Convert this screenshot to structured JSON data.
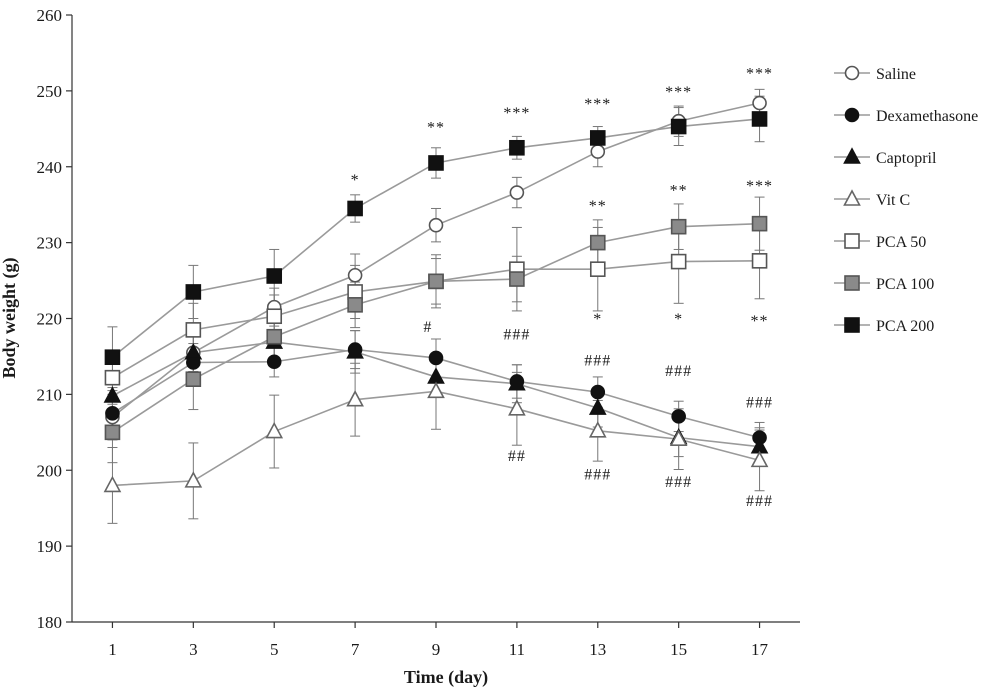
{
  "chart_data": {
    "type": "line",
    "xlabel": "Time (day)",
    "ylabel": "Body weight (g)",
    "x": [
      1,
      3,
      5,
      7,
      9,
      11,
      13,
      15,
      17
    ],
    "xlim": [
      0,
      18
    ],
    "ylim": [
      180,
      260
    ],
    "yticks": [
      180,
      190,
      200,
      210,
      220,
      230,
      240,
      250,
      260
    ],
    "grid": false,
    "legend_position": "right",
    "series": [
      {
        "name": "Saline",
        "marker": "circle-open",
        "values": [
          207,
          215.5,
          221.5,
          225.7,
          232.3,
          236.6,
          242,
          246,
          248.4
        ],
        "errors": [
          3,
          2.5,
          2.5,
          2.8,
          2.2,
          2,
          2,
          2,
          1.8
        ]
      },
      {
        "name": "Dexamethasone",
        "marker": "circle-filled",
        "values": [
          207.5,
          214.2,
          214.3,
          215.9,
          214.8,
          211.7,
          210.3,
          207.1,
          204.3
        ],
        "errors": [
          3,
          2.5,
          2,
          2.5,
          2.5,
          2.2,
          2,
          2,
          2
        ]
      },
      {
        "name": "Captopril",
        "marker": "triangle-filled",
        "values": [
          209.8,
          215.5,
          216.9,
          215.6,
          212.3,
          211.4,
          208.2,
          204.3,
          203.1
        ],
        "errors": [
          3,
          2.5,
          2.5,
          2.8,
          2.5,
          2.5,
          2.5,
          2.5,
          2.5
        ]
      },
      {
        "name": "Vit C",
        "marker": "triangle-open",
        "values": [
          198,
          198.6,
          205.1,
          209.3,
          210.4,
          208.1,
          205.2,
          204.1,
          201.3
        ],
        "errors": [
          5,
          5,
          4.8,
          4.8,
          5,
          4.8,
          4,
          4,
          4
        ]
      },
      {
        "name": "PCA 50",
        "marker": "square-open",
        "values": [
          212.2,
          218.5,
          220.3,
          223.5,
          224.9,
          226.5,
          226.5,
          227.5,
          227.6
        ],
        "errors": [
          3.5,
          3.5,
          2.8,
          3.5,
          3.5,
          5.5,
          5.5,
          5.5,
          5
        ]
      },
      {
        "name": "PCA 100",
        "marker": "square-gray",
        "values": [
          205,
          212,
          217.6,
          221.8,
          224.9,
          225.2,
          230,
          232.1,
          232.5
        ],
        "errors": [
          4,
          4,
          3,
          3,
          3,
          3,
          3,
          3,
          3.5
        ]
      },
      {
        "name": "PCA 200",
        "marker": "square-filled",
        "values": [
          214.9,
          223.5,
          225.6,
          234.5,
          240.5,
          242.5,
          243.8,
          245.3,
          246.3
        ],
        "errors": [
          4,
          3.5,
          3.5,
          1.8,
          2,
          1.5,
          1.5,
          2.5,
          3
        ]
      }
    ],
    "annotations": [
      {
        "text": "*",
        "x": 7,
        "y": 237.6
      },
      {
        "text": "**",
        "x": 9,
        "y": 244.5
      },
      {
        "text": "***",
        "x": 11,
        "y": 246.4
      },
      {
        "text": "***",
        "x": 13,
        "y": 247.6
      },
      {
        "text": "***",
        "x": 15,
        "y": 249.2
      },
      {
        "text": "***",
        "x": 17,
        "y": 251.6
      },
      {
        "text": "**",
        "x": 13,
        "y": 234.2
      },
      {
        "text": "**",
        "x": 15,
        "y": 236.2
      },
      {
        "text": "***",
        "x": 17,
        "y": 236.8
      },
      {
        "text": "*",
        "x": 13,
        "y": 219.3
      },
      {
        "text": "*",
        "x": 15,
        "y": 219.3
      },
      {
        "text": "**",
        "x": 17,
        "y": 219.0
      },
      {
        "text": "#",
        "x": 8.8,
        "y": 218.2
      },
      {
        "text": "###",
        "x": 11,
        "y": 217.2
      },
      {
        "text": "###",
        "x": 13,
        "y": 213.8
      },
      {
        "text": "###",
        "x": 15,
        "y": 212.4
      },
      {
        "text": "###",
        "x": 17,
        "y": 208.3
      },
      {
        "text": "##",
        "x": 11,
        "y": 201.2
      },
      {
        "text": "###",
        "x": 13,
        "y": 198.8
      },
      {
        "text": "###",
        "x": 15,
        "y": 197.8
      },
      {
        "text": "###",
        "x": 17,
        "y": 195.3
      }
    ]
  }
}
